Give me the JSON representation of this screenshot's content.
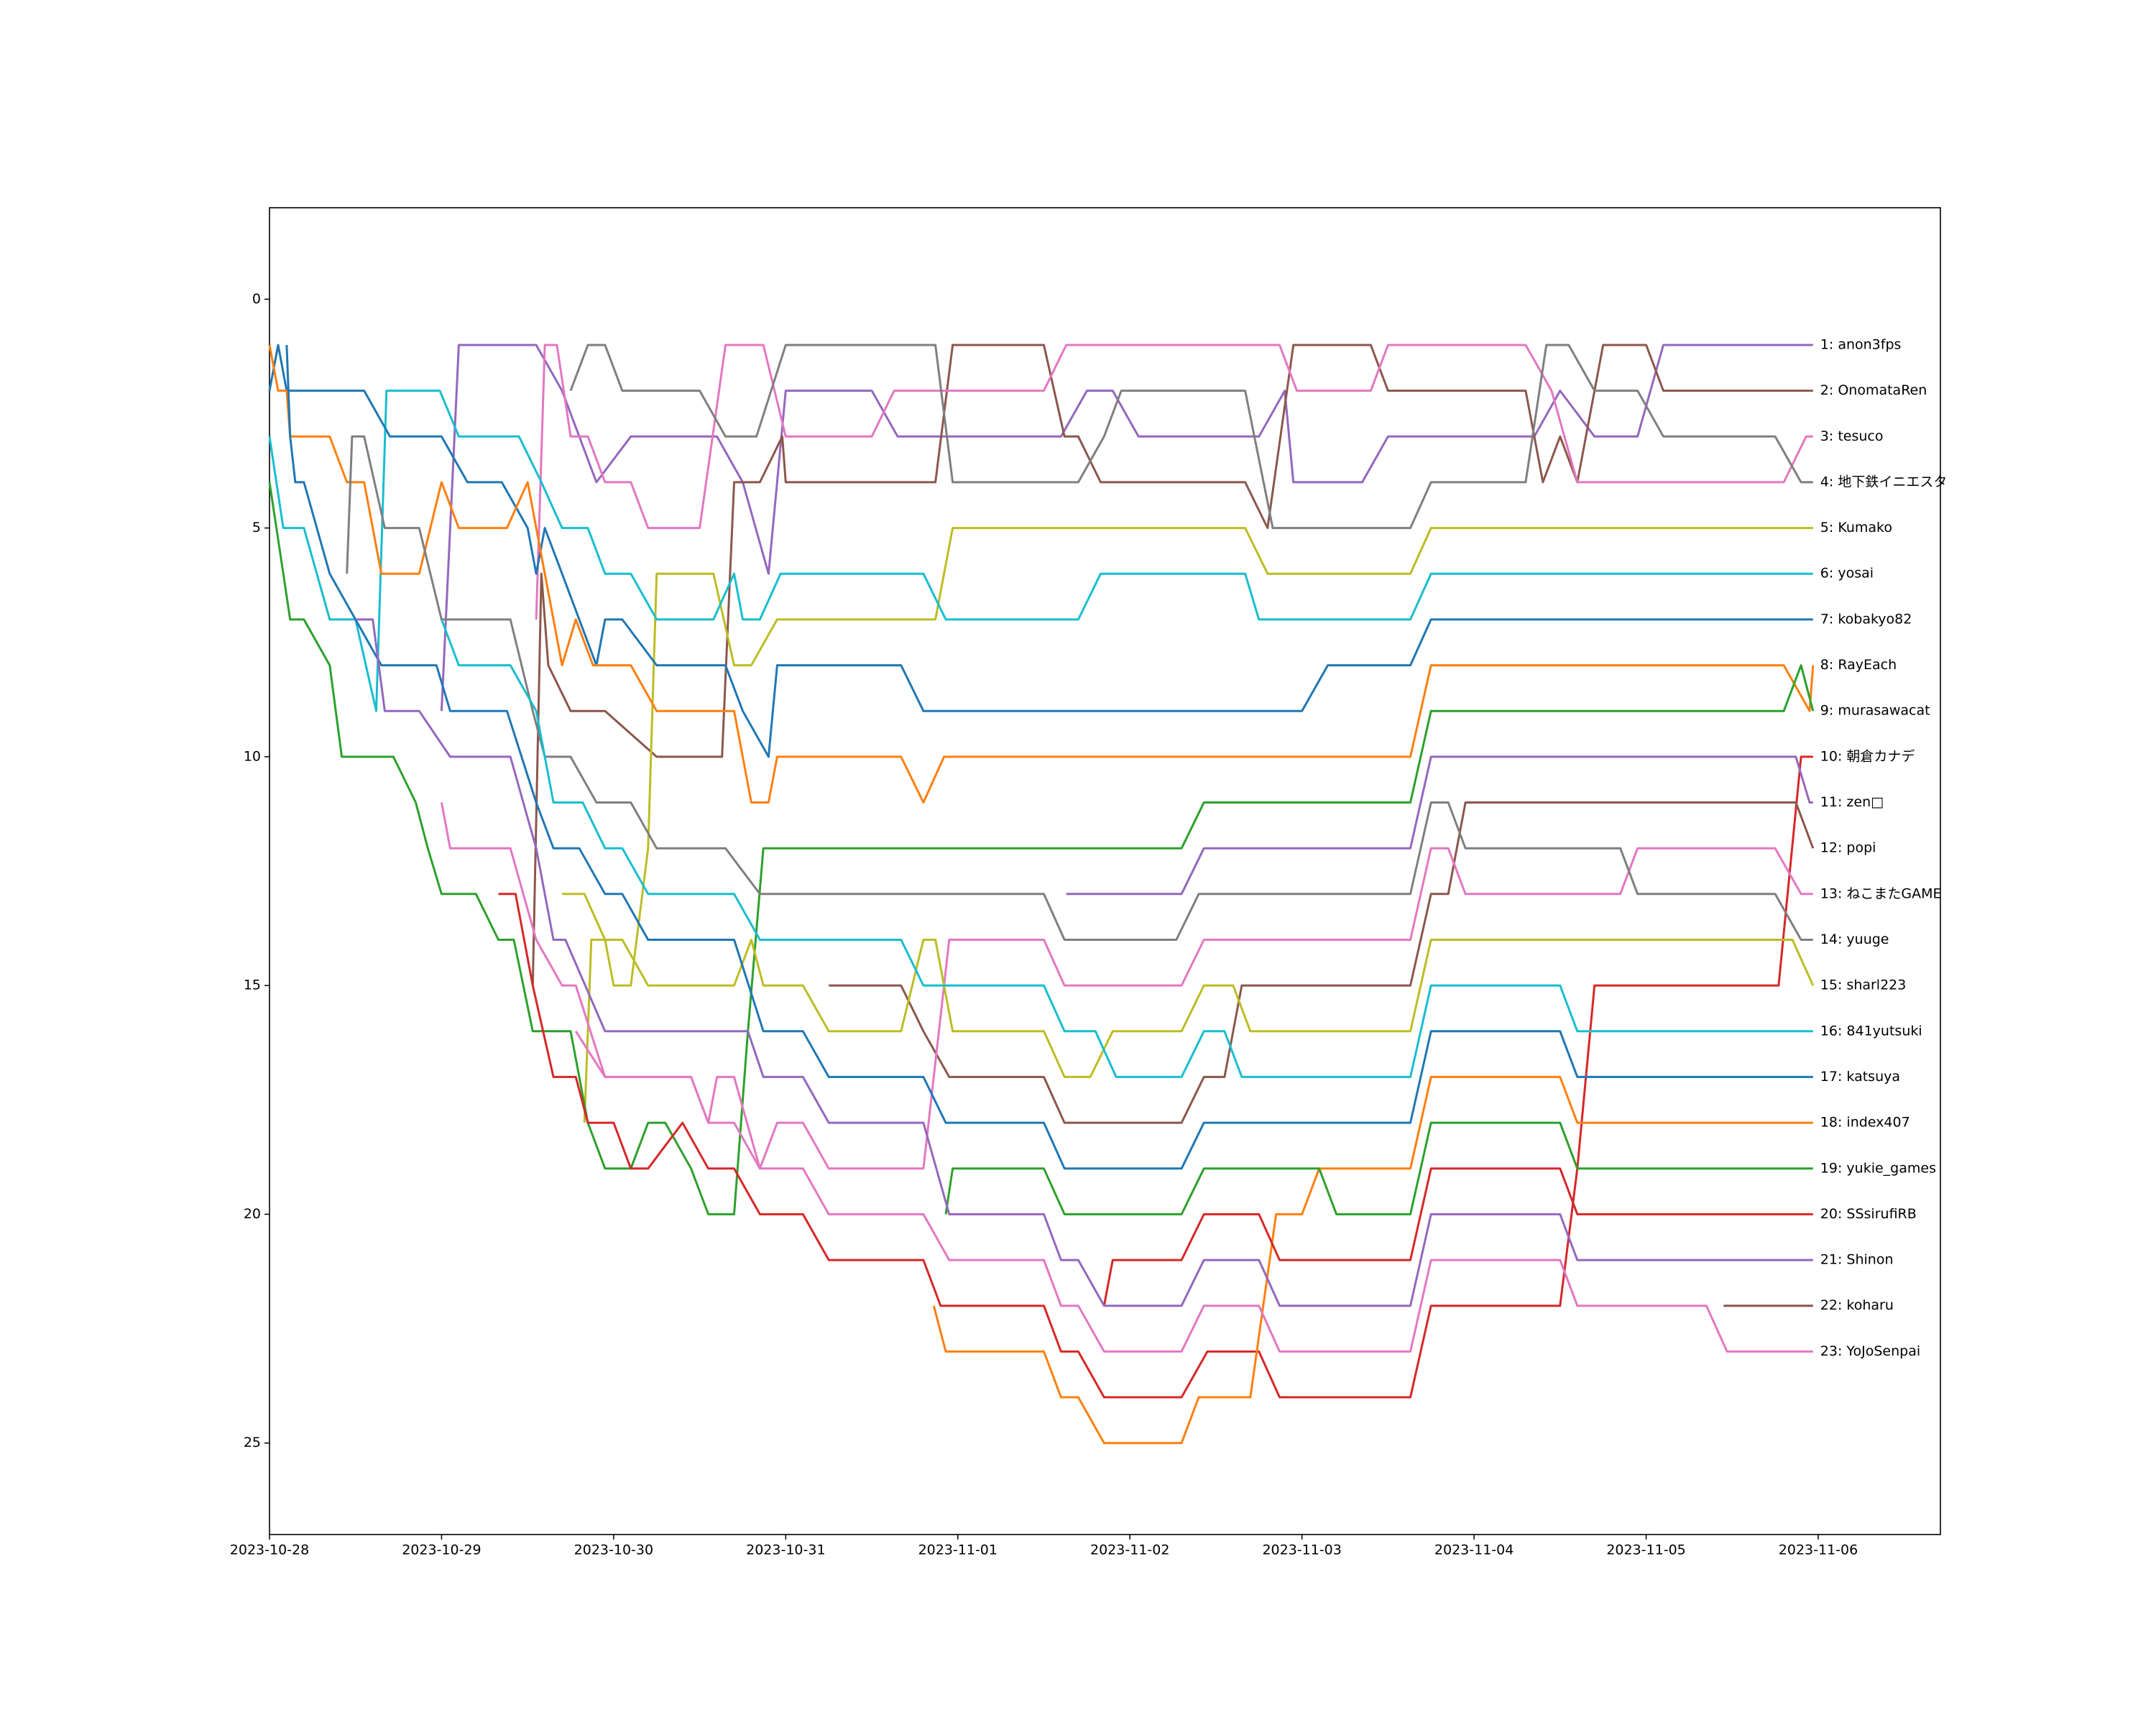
{
  "chart_data": {
    "type": "line",
    "xlim": [
      0,
      9.71
    ],
    "ylim": [
      27,
      -2
    ],
    "xticks": [
      {
        "value": 0,
        "label": "2023-10-28"
      },
      {
        "value": 1,
        "label": "2023-10-29"
      },
      {
        "value": 2,
        "label": "2023-10-30"
      },
      {
        "value": 3,
        "label": "2023-10-31"
      },
      {
        "value": 4,
        "label": "2023-11-01"
      },
      {
        "value": 5,
        "label": "2023-11-02"
      },
      {
        "value": 6,
        "label": "2023-11-03"
      },
      {
        "value": 7,
        "label": "2023-11-04"
      },
      {
        "value": 8,
        "label": "2023-11-05"
      },
      {
        "value": 9,
        "label": "2023-11-06"
      }
    ],
    "yticks": [
      0,
      5,
      10,
      15,
      20,
      25
    ],
    "series": [
      {
        "name": "1: anon3fps",
        "color": "#9467bd",
        "x": [
          1.0,
          1.1,
          1.55,
          1.7,
          1.9,
          2.1,
          2.6,
          2.75,
          2.9,
          3.0,
          3.5,
          3.65,
          4.6,
          4.75,
          4.9,
          5.05,
          5.75,
          5.9,
          5.95,
          6.35,
          6.5,
          7.35,
          7.5,
          7.7,
          7.95,
          8.1,
          8.97
        ],
        "values": [
          9,
          1,
          1,
          2,
          4,
          3,
          3,
          4,
          6,
          2,
          2,
          3,
          3,
          2,
          2,
          3,
          3,
          2,
          4,
          4,
          3,
          3,
          2,
          3,
          3,
          1,
          1
        ]
      },
      {
        "name": "2: OnomataRen",
        "color": "#8c564b",
        "x": [
          1.53,
          1.58,
          1.62,
          1.75,
          1.95,
          2.25,
          2.63,
          2.7,
          2.85,
          2.98,
          3.0,
          3.87,
          3.97,
          4.5,
          4.62,
          4.7,
          4.83,
          5.67,
          5.8,
          5.95,
          6.4,
          6.5,
          7.3,
          7.4,
          7.5,
          7.6,
          7.75,
          8.0,
          8.1,
          8.97
        ],
        "values": [
          15,
          6,
          8,
          9,
          9,
          10,
          10,
          4,
          4,
          3,
          4,
          4,
          1,
          1,
          3,
          3,
          4,
          4,
          5,
          1,
          1,
          2,
          2,
          4,
          3,
          4,
          1,
          1,
          2,
          2
        ]
      },
      {
        "name": "3: tesuco",
        "color": "#e377c2",
        "x": [
          1.55,
          1.6,
          1.67,
          1.75,
          1.85,
          1.95,
          2.1,
          2.2,
          2.5,
          2.65,
          2.87,
          3.0,
          3.5,
          3.63,
          4.5,
          4.63,
          5.87,
          5.97,
          6.4,
          6.5,
          7.3,
          7.45,
          7.6,
          8.8,
          8.93,
          8.97
        ],
        "values": [
          7,
          1,
          1,
          3,
          3,
          4,
          4,
          5,
          5,
          1,
          1,
          3,
          3,
          2,
          2,
          1,
          1,
          2,
          2,
          1,
          1,
          2,
          4,
          4,
          3,
          3
        ]
      },
      {
        "name": "4: 地下鉄イニエスタ",
        "color": "#7f7f7f",
        "x": [
          1.75,
          1.85,
          1.95,
          2.05,
          2.5,
          2.65,
          2.83,
          3.0,
          3.87,
          3.97,
          4.7,
          4.85,
          4.95,
          5.67,
          5.83,
          6.63,
          6.75,
          7.3,
          7.42,
          7.55,
          7.7,
          7.95,
          8.1,
          8.75,
          8.9,
          8.97
        ],
        "values": [
          2,
          1,
          1,
          2,
          2,
          3,
          3,
          1,
          1,
          4,
          4,
          3,
          2,
          2,
          5,
          5,
          4,
          4,
          1,
          1,
          2,
          2,
          3,
          3,
          4,
          4
        ]
      },
      {
        "name": "5: Kumako",
        "color": "#bcbd22",
        "x": [
          1.83,
          1.87,
          1.95,
          2.0,
          2.1,
          2.2,
          2.25,
          2.58,
          2.7,
          2.8,
          2.95,
          3.87,
          3.97,
          5.67,
          5.8,
          6.63,
          6.75,
          8.97
        ],
        "values": [
          18,
          14,
          14,
          15,
          15,
          12,
          6,
          6,
          8,
          8,
          7,
          7,
          5,
          5,
          6,
          6,
          5,
          5
        ]
      },
      {
        "name": "6: yosai",
        "color": "#17becf",
        "x": [
          0.0,
          0.08,
          0.2,
          0.35,
          0.5,
          0.62,
          0.68,
          0.99,
          1.1,
          1.45,
          1.58,
          1.7,
          1.85,
          1.95,
          2.1,
          2.25,
          2.58,
          2.7,
          2.75,
          2.85,
          2.97,
          3.8,
          3.93,
          4.7,
          4.83,
          5.67,
          5.75,
          6.63,
          6.75,
          8.97
        ],
        "values": [
          3,
          5,
          5,
          7,
          7,
          9,
          2,
          2,
          3,
          3,
          4,
          5,
          5,
          6,
          6,
          7,
          7,
          6,
          7,
          7,
          6,
          6,
          7,
          7,
          6,
          6,
          7,
          7,
          6,
          6
        ]
      },
      {
        "name": "7: kobakyo82",
        "color": "#1f77b4",
        "x": [
          0.0,
          0.05,
          0.1,
          0.55,
          0.7,
          1.0,
          1.15,
          1.35,
          1.5,
          1.55,
          1.6,
          1.7,
          1.9,
          1.95,
          2.05,
          2.25,
          2.65,
          2.75,
          2.9,
          2.95,
          3.67,
          3.8,
          6.0,
          6.15,
          6.63,
          6.75,
          8.97
        ],
        "values": [
          2,
          1,
          2,
          2,
          3,
          3,
          4,
          4,
          5,
          6,
          5,
          6,
          8,
          7,
          7,
          8,
          8,
          9,
          10,
          8,
          8,
          9,
          9,
          8,
          8,
          7,
          7
        ]
      },
      {
        "name": "8: RayEach",
        "color": "#ff7f0e",
        "x": [
          0.0,
          0.05,
          0.1,
          0.12,
          0.35,
          0.45,
          0.55,
          0.65,
          0.87,
          1.0,
          1.1,
          1.38,
          1.5,
          1.6,
          1.7,
          1.78,
          1.88,
          2.1,
          2.25,
          2.7,
          2.8,
          2.9,
          2.95,
          3.67,
          3.8,
          3.92,
          6.63,
          6.75,
          8.8,
          8.95,
          8.97
        ],
        "values": [
          1,
          2,
          2,
          3,
          3,
          4,
          4,
          6,
          6,
          4,
          5,
          5,
          4,
          6,
          8,
          7,
          8,
          8,
          9,
          9,
          11,
          11,
          10,
          10,
          11,
          10,
          10,
          8,
          8,
          9,
          8
        ]
      },
      {
        "name": "9: murasawacat",
        "color": "#2ca02c",
        "x": [
          0.0,
          0.08,
          0.12,
          0.2,
          0.35,
          0.42,
          0.72,
          0.85,
          0.92,
          1.0,
          1.2,
          1.33,
          1.42,
          1.53,
          1.75,
          1.85,
          1.95,
          2.1,
          2.2,
          2.3,
          2.45,
          2.55,
          2.7,
          2.78,
          2.87,
          5.3,
          5.43,
          6.63,
          6.75,
          8.8,
          8.9,
          8.97
        ],
        "values": [
          4,
          6,
          7,
          7,
          8,
          10,
          10,
          11,
          12,
          13,
          13,
          14,
          14,
          16,
          16,
          18,
          19,
          19,
          18,
          18,
          19,
          20,
          20,
          16,
          12,
          12,
          11,
          11,
          9,
          9,
          8,
          9
        ]
      },
      {
        "name": "10: 朝倉カナデ",
        "color": "#d62728",
        "x": [
          1.33,
          1.43,
          1.53,
          1.65,
          1.78,
          1.85,
          2.0,
          2.1,
          2.2,
          2.4,
          2.55,
          2.7,
          2.85,
          3.1,
          3.25,
          3.8,
          3.9,
          4.5,
          4.6,
          4.7,
          4.85,
          5.3,
          5.45,
          5.75,
          5.87,
          6.63,
          6.75,
          7.5,
          7.6,
          7.7,
          8.77,
          8.9,
          8.97
        ],
        "values": [
          13,
          13,
          15,
          17,
          17,
          18,
          18,
          19,
          19,
          18,
          19,
          19,
          20,
          20,
          21,
          21,
          22,
          22,
          23,
          23,
          24,
          24,
          23,
          23,
          24,
          24,
          22,
          22,
          19,
          15,
          15,
          10,
          10
        ]
      },
      {
        "name": "11: zen□",
        "color": "#9467bd",
        "x": [
          4.63,
          5.3,
          5.43,
          6.63,
          6.75,
          8.87,
          8.95,
          8.97
        ],
        "values": [
          13,
          13,
          12,
          12,
          10,
          10,
          11,
          11
        ]
      },
      {
        "name": "12: popi",
        "color": "#8c564b",
        "x": [
          3.25,
          3.67,
          3.8,
          3.95,
          4.5,
          4.62,
          5.3,
          5.43,
          5.55,
          5.65,
          6.63,
          6.75,
          6.85,
          6.95,
          8.87,
          8.97
        ],
        "values": [
          15,
          15,
          16,
          17,
          17,
          18,
          18,
          17,
          17,
          15,
          15,
          13,
          13,
          11,
          11,
          12
        ]
      },
      {
        "name": "13: ねこまたGAME",
        "color": "#e377c2",
        "x": [
          1.0,
          1.05,
          1.4,
          1.55,
          1.7,
          1.78,
          1.95,
          2.45,
          2.55,
          2.6,
          2.7,
          2.85,
          2.95,
          3.1,
          3.25,
          3.8,
          3.95,
          4.5,
          4.62,
          5.3,
          5.43,
          6.63,
          6.75,
          6.85,
          6.95,
          7.85,
          7.95,
          8.75,
          8.9,
          8.97
        ],
        "values": [
          11,
          12,
          12,
          14,
          15,
          15,
          17,
          17,
          18,
          17,
          17,
          19,
          18,
          18,
          19,
          19,
          14,
          14,
          15,
          15,
          14,
          14,
          12,
          12,
          13,
          13,
          12,
          12,
          13,
          13
        ]
      },
      {
        "name": "14: yuuge",
        "color": "#7f7f7f",
        "x": [
          0.45,
          0.48,
          0.55,
          0.67,
          0.87,
          1.0,
          1.4,
          1.53,
          1.6,
          1.75,
          1.9,
          2.1,
          2.25,
          2.65,
          2.85,
          4.5,
          4.62,
          5.27,
          5.4,
          6.63,
          6.75,
          6.85,
          6.95,
          7.85,
          7.95,
          8.75,
          8.9,
          8.97
        ],
        "values": [
          6,
          3,
          3,
          5,
          5,
          7,
          7,
          9,
          10,
          10,
          11,
          11,
          12,
          12,
          13,
          13,
          14,
          14,
          13,
          13,
          11,
          11,
          12,
          12,
          13,
          13,
          14,
          14
        ]
      },
      {
        "name": "15: sharl223",
        "color": "#bcbd22",
        "x": [
          1.7,
          1.83,
          1.95,
          2.05,
          2.2,
          2.7,
          2.8,
          2.87,
          3.1,
          3.25,
          3.67,
          3.8,
          3.87,
          3.97,
          4.5,
          4.62,
          4.77,
          4.9,
          5.3,
          5.43,
          5.6,
          5.7,
          6.63,
          6.75,
          8.85,
          8.97
        ],
        "values": [
          13,
          13,
          14,
          14,
          15,
          15,
          14,
          15,
          15,
          16,
          16,
          14,
          14,
          16,
          16,
          17,
          17,
          16,
          16,
          15,
          15,
          16,
          16,
          14,
          14,
          15
        ]
      },
      {
        "name": "16: 841yutsuki",
        "color": "#17becf",
        "x": [
          1.0,
          1.1,
          1.4,
          1.55,
          1.65,
          1.82,
          1.95,
          2.05,
          2.2,
          2.7,
          2.85,
          3.67,
          3.8,
          4.5,
          4.62,
          4.8,
          4.92,
          5.3,
          5.43,
          5.55,
          5.65,
          6.63,
          6.75,
          7.5,
          7.6,
          8.97
        ],
        "values": [
          7,
          8,
          8,
          9,
          11,
          11,
          12,
          12,
          13,
          13,
          14,
          14,
          15,
          15,
          16,
          16,
          17,
          17,
          16,
          16,
          17,
          17,
          15,
          15,
          16,
          16
        ]
      },
      {
        "name": "17: katsuya",
        "color": "#1f77b4",
        "x": [
          0.1,
          0.12,
          0.15,
          0.2,
          0.35,
          0.5,
          0.65,
          0.97,
          1.05,
          1.38,
          1.55,
          1.65,
          1.8,
          1.95,
          2.05,
          2.2,
          2.7,
          2.87,
          3.1,
          3.25,
          3.8,
          3.93,
          4.5,
          4.62,
          5.3,
          5.43,
          6.63,
          6.75,
          7.5,
          7.6,
          8.97
        ],
        "values": [
          1,
          3,
          4,
          4,
          6,
          7,
          8,
          8,
          9,
          9,
          11,
          12,
          12,
          13,
          13,
          14,
          14,
          16,
          16,
          17,
          17,
          18,
          18,
          19,
          19,
          18,
          18,
          16,
          16,
          17,
          17
        ]
      },
      {
        "name": "18: index407",
        "color": "#ff7f0e",
        "x": [
          3.86,
          3.93,
          4.5,
          4.6,
          4.7,
          4.85,
          5.3,
          5.4,
          5.7,
          5.85,
          6.0,
          6.1,
          6.63,
          6.75,
          7.5,
          7.6,
          8.97
        ],
        "values": [
          22,
          23,
          23,
          24,
          24,
          25,
          25,
          24,
          24,
          20,
          20,
          19,
          19,
          17,
          17,
          18,
          18
        ]
      },
      {
        "name": "19: yukie_games",
        "color": "#2ca02c",
        "x": [
          3.93,
          3.97,
          4.5,
          4.62,
          5.3,
          5.43,
          6.1,
          6.2,
          6.63,
          6.75,
          7.5,
          7.6,
          8.97
        ],
        "values": [
          20,
          19,
          19,
          20,
          20,
          19,
          19,
          20,
          20,
          18,
          18,
          19,
          19
        ]
      },
      {
        "name": "20: SSsirufiRB",
        "color": "#d62728",
        "x": [
          4.85,
          4.9,
          5.3,
          5.43,
          5.75,
          5.87,
          6.63,
          6.75,
          7.5,
          7.6,
          8.97
        ],
        "values": [
          22,
          21,
          21,
          20,
          20,
          21,
          21,
          19,
          19,
          20,
          20
        ]
      },
      {
        "name": "21: Shinon",
        "color": "#9467bd",
        "x": [
          0.5,
          0.6,
          0.67,
          0.87,
          1.05,
          1.4,
          1.55,
          1.65,
          1.72,
          1.95,
          2.78,
          2.87,
          3.1,
          3.25,
          3.8,
          3.95,
          4.5,
          4.6,
          4.7,
          4.85,
          5.3,
          5.43,
          5.75,
          5.87,
          6.63,
          6.75,
          7.5,
          7.6,
          8.97
        ],
        "values": [
          7,
          7,
          9,
          9,
          10,
          10,
          12,
          14,
          14,
          16,
          16,
          17,
          17,
          18,
          18,
          20,
          20,
          21,
          21,
          22,
          22,
          21,
          21,
          22,
          22,
          20,
          20,
          21,
          21
        ]
      },
      {
        "name": "22: koharu",
        "color": "#8c564b",
        "x": [
          8.45,
          8.97
        ],
        "values": [
          22,
          22
        ]
      },
      {
        "name": "23: YoJoSenpai",
        "color": "#e377c2",
        "x": [
          1.78,
          1.95,
          2.45,
          2.55,
          2.7,
          2.85,
          3.1,
          3.25,
          3.8,
          3.95,
          4.5,
          4.6,
          4.7,
          4.85,
          5.3,
          5.43,
          5.55,
          5.75,
          5.87,
          6.63,
          6.75,
          7.5,
          7.6,
          8.35,
          8.47,
          8.97
        ],
        "values": [
          16,
          17,
          17,
          18,
          18,
          19,
          19,
          20,
          20,
          21,
          21,
          22,
          22,
          23,
          23,
          22,
          22,
          22,
          23,
          23,
          21,
          21,
          22,
          22,
          23,
          23
        ]
      }
    ]
  }
}
